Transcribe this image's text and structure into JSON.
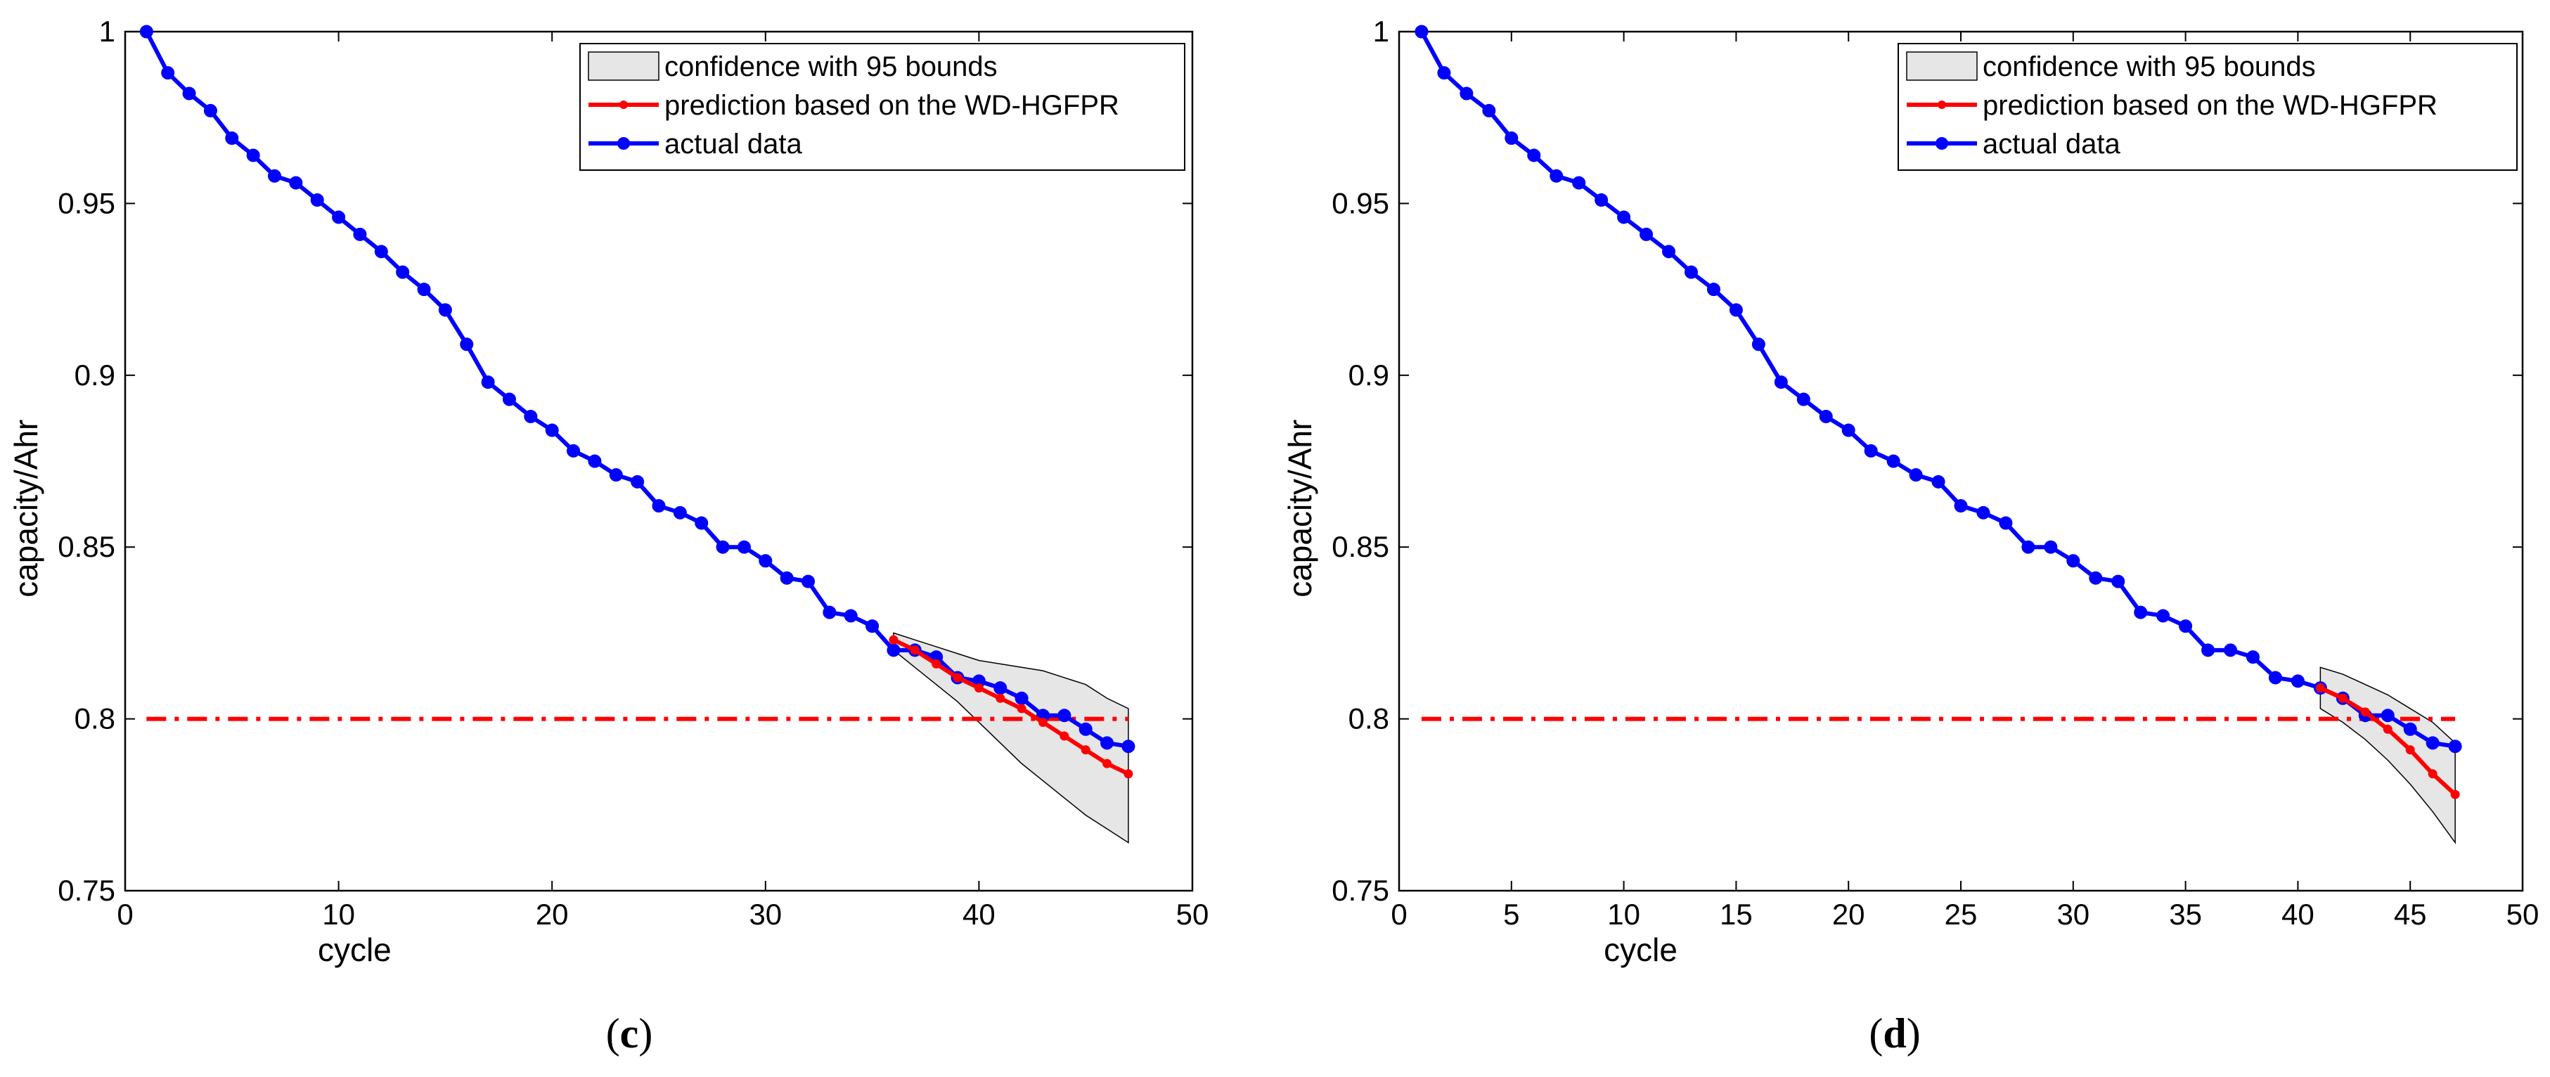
{
  "figure": {
    "panels": [
      "c",
      "d"
    ],
    "colors": {
      "prediction": "#ff0000",
      "actual": "#0000ff",
      "band_fill": "#e6e6e6",
      "threshold": "#ff0000"
    }
  },
  "chart_data": [
    {
      "type": "line",
      "panel_label": "c",
      "xlabel": "cycle",
      "ylabel": "capacity/Ahr",
      "xlim": [
        0,
        50
      ],
      "ylim": [
        0.75,
        1.0
      ],
      "xticks": [
        0,
        10,
        20,
        30,
        40,
        50
      ],
      "yticks": [
        0.75,
        0.8,
        0.85,
        0.9,
        0.95,
        1.0
      ],
      "xtick_labels": [
        "0",
        "10",
        "20",
        "30",
        "40",
        "50"
      ],
      "ytick_labels": [
        "0.75",
        "0.8",
        "0.85",
        "0.9",
        "0.95",
        "1"
      ],
      "legend": {
        "position": "top-right",
        "entries": [
          "confidence with 95 bounds",
          "prediction based on the WD-HGFPR",
          "actual data"
        ]
      },
      "threshold": {
        "y": 0.8,
        "x_range": [
          1,
          47
        ],
        "style": "dash-dot",
        "color": "#ff0000"
      },
      "series": [
        {
          "name": "actual data",
          "color": "#0000ff",
          "x": [
            1,
            2,
            3,
            4,
            5,
            6,
            7,
            8,
            9,
            10,
            11,
            12,
            13,
            14,
            15,
            16,
            17,
            18,
            19,
            20,
            21,
            22,
            23,
            24,
            25,
            26,
            27,
            28,
            29,
            30,
            31,
            32,
            33,
            34,
            35,
            36,
            37,
            38,
            39,
            40,
            41,
            42,
            43,
            44,
            45,
            46,
            47
          ],
          "y": [
            1.0,
            0.988,
            0.982,
            0.977,
            0.969,
            0.964,
            0.958,
            0.956,
            0.951,
            0.946,
            0.941,
            0.936,
            0.93,
            0.925,
            0.919,
            0.909,
            0.898,
            0.893,
            0.888,
            0.884,
            0.878,
            0.875,
            0.871,
            0.869,
            0.862,
            0.86,
            0.857,
            0.85,
            0.85,
            0.846,
            0.841,
            0.84,
            0.831,
            0.83,
            0.827,
            0.82,
            0.82,
            0.818,
            0.812,
            0.811,
            0.809,
            0.806,
            0.801,
            0.801,
            0.797,
            0.793,
            0.792
          ]
        },
        {
          "name": "prediction based on the WD-HGFPR",
          "color": "#ff0000",
          "x": [
            36,
            37,
            38,
            39,
            40,
            41,
            42,
            43,
            44,
            45,
            46,
            47
          ],
          "y": [
            0.823,
            0.82,
            0.816,
            0.812,
            0.809,
            0.806,
            0.803,
            0.799,
            0.795,
            0.791,
            0.787,
            0.784
          ]
        }
      ],
      "confidence_band": {
        "name": "confidence with 95 bounds",
        "x": [
          36,
          37,
          38,
          39,
          40,
          41,
          42,
          43,
          44,
          45,
          46,
          47
        ],
        "upper": [
          0.825,
          0.823,
          0.821,
          0.819,
          0.817,
          0.816,
          0.815,
          0.814,
          0.812,
          0.81,
          0.806,
          0.803
        ],
        "lower": [
          0.82,
          0.815,
          0.81,
          0.805,
          0.799,
          0.793,
          0.787,
          0.782,
          0.777,
          0.772,
          0.768,
          0.764
        ]
      }
    },
    {
      "type": "line",
      "panel_label": "d",
      "xlabel": "cycle",
      "ylabel": "capacity/Ahr",
      "xlim": [
        0,
        50
      ],
      "ylim": [
        0.75,
        1.0
      ],
      "xticks": [
        0,
        5,
        10,
        15,
        20,
        25,
        30,
        35,
        40,
        45,
        50
      ],
      "yticks": [
        0.75,
        0.8,
        0.85,
        0.9,
        0.95,
        1.0
      ],
      "xtick_labels": [
        "0",
        "5",
        "10",
        "15",
        "20",
        "25",
        "30",
        "35",
        "40",
        "45",
        "50"
      ],
      "ytick_labels": [
        "0.75",
        "0.8",
        "0.85",
        "0.9",
        "0.95",
        "1"
      ],
      "legend": {
        "position": "top-right",
        "entries": [
          "confidence with 95 bounds",
          "prediction based on the WD-HGFPR",
          "actual data"
        ]
      },
      "threshold": {
        "y": 0.8,
        "x_range": [
          1,
          47
        ],
        "style": "dash-dot",
        "color": "#ff0000"
      },
      "series": [
        {
          "name": "actual data",
          "color": "#0000ff",
          "x": [
            1,
            2,
            3,
            4,
            5,
            6,
            7,
            8,
            9,
            10,
            11,
            12,
            13,
            14,
            15,
            16,
            17,
            18,
            19,
            20,
            21,
            22,
            23,
            24,
            25,
            26,
            27,
            28,
            29,
            30,
            31,
            32,
            33,
            34,
            35,
            36,
            37,
            38,
            39,
            40,
            41,
            42,
            43,
            44,
            45,
            46,
            47
          ],
          "y": [
            1.0,
            0.988,
            0.982,
            0.977,
            0.969,
            0.964,
            0.958,
            0.956,
            0.951,
            0.946,
            0.941,
            0.936,
            0.93,
            0.925,
            0.919,
            0.909,
            0.898,
            0.893,
            0.888,
            0.884,
            0.878,
            0.875,
            0.871,
            0.869,
            0.862,
            0.86,
            0.857,
            0.85,
            0.85,
            0.846,
            0.841,
            0.84,
            0.831,
            0.83,
            0.827,
            0.82,
            0.82,
            0.818,
            0.812,
            0.811,
            0.809,
            0.806,
            0.801,
            0.801,
            0.797,
            0.793,
            0.792
          ]
        },
        {
          "name": "prediction based on the WD-HGFPR",
          "color": "#ff0000",
          "x": [
            41,
            42,
            43,
            44,
            45,
            46,
            47
          ],
          "y": [
            0.809,
            0.806,
            0.802,
            0.797,
            0.791,
            0.784,
            0.778
          ]
        }
      ],
      "confidence_band": {
        "name": "confidence with 95 bounds",
        "x": [
          41,
          42,
          43,
          44,
          45,
          46,
          47
        ],
        "upper": [
          0.815,
          0.813,
          0.81,
          0.807,
          0.803,
          0.799,
          0.793
        ],
        "lower": [
          0.803,
          0.799,
          0.794,
          0.788,
          0.781,
          0.773,
          0.764
        ]
      }
    }
  ]
}
